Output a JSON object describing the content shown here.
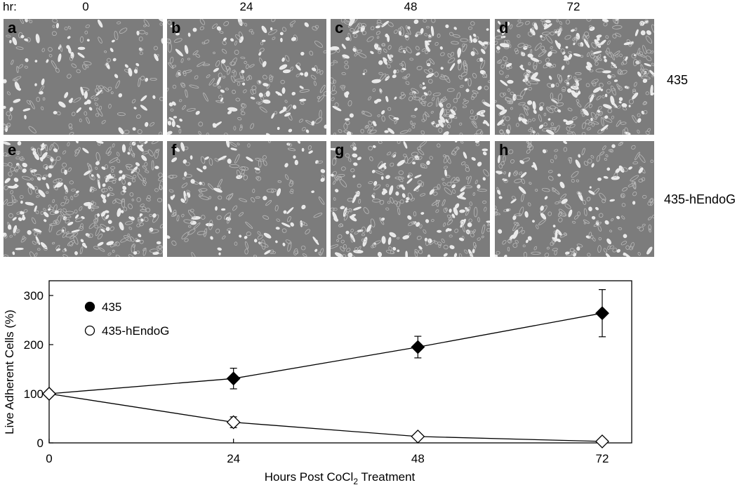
{
  "figure": {
    "hr_label": "hr:",
    "time_columns": [
      "0",
      "24",
      "48",
      "72"
    ],
    "panels": [
      {
        "letter": "a",
        "row": 0,
        "col": 0,
        "density": 170
      },
      {
        "letter": "b",
        "row": 0,
        "col": 1,
        "density": 220
      },
      {
        "letter": "c",
        "row": 0,
        "col": 2,
        "density": 320
      },
      {
        "letter": "d",
        "row": 0,
        "col": 3,
        "density": 400
      },
      {
        "letter": "e",
        "row": 1,
        "col": 0,
        "density": 380
      },
      {
        "letter": "f",
        "row": 1,
        "col": 1,
        "density": 190
      },
      {
        "letter": "g",
        "row": 1,
        "col": 2,
        "density": 300
      },
      {
        "letter": "h",
        "row": 1,
        "col": 3,
        "density": 240
      }
    ],
    "row_labels": [
      "435",
      "435-hEndoG"
    ]
  },
  "chart_data": {
    "type": "line",
    "x": [
      0,
      24,
      48,
      72
    ],
    "xlabel_prefix": "Hours Post CoCl",
    "xlabel_sub": "2",
    "xlabel_suffix": " Treatment",
    "ylabel": "Live Adherent Cells (%)",
    "xlim": [
      0,
      72
    ],
    "ylim": [
      0,
      330
    ],
    "xticks": [
      "0",
      "24",
      "48",
      "72"
    ],
    "yticks": [
      "0",
      "100",
      "200",
      "300"
    ],
    "series": [
      {
        "name": "435",
        "marker": "filled-diamond",
        "color": "#000000",
        "values": [
          100,
          131,
          195,
          264
        ],
        "errors": [
          0,
          21,
          22,
          48
        ]
      },
      {
        "name": "435-hEndoG",
        "marker": "open-diamond",
        "color": "#000000",
        "values": [
          100,
          42,
          13,
          3
        ],
        "errors": [
          0,
          11,
          4,
          2
        ]
      }
    ],
    "legend_placement": "top-left",
    "grid": false
  }
}
